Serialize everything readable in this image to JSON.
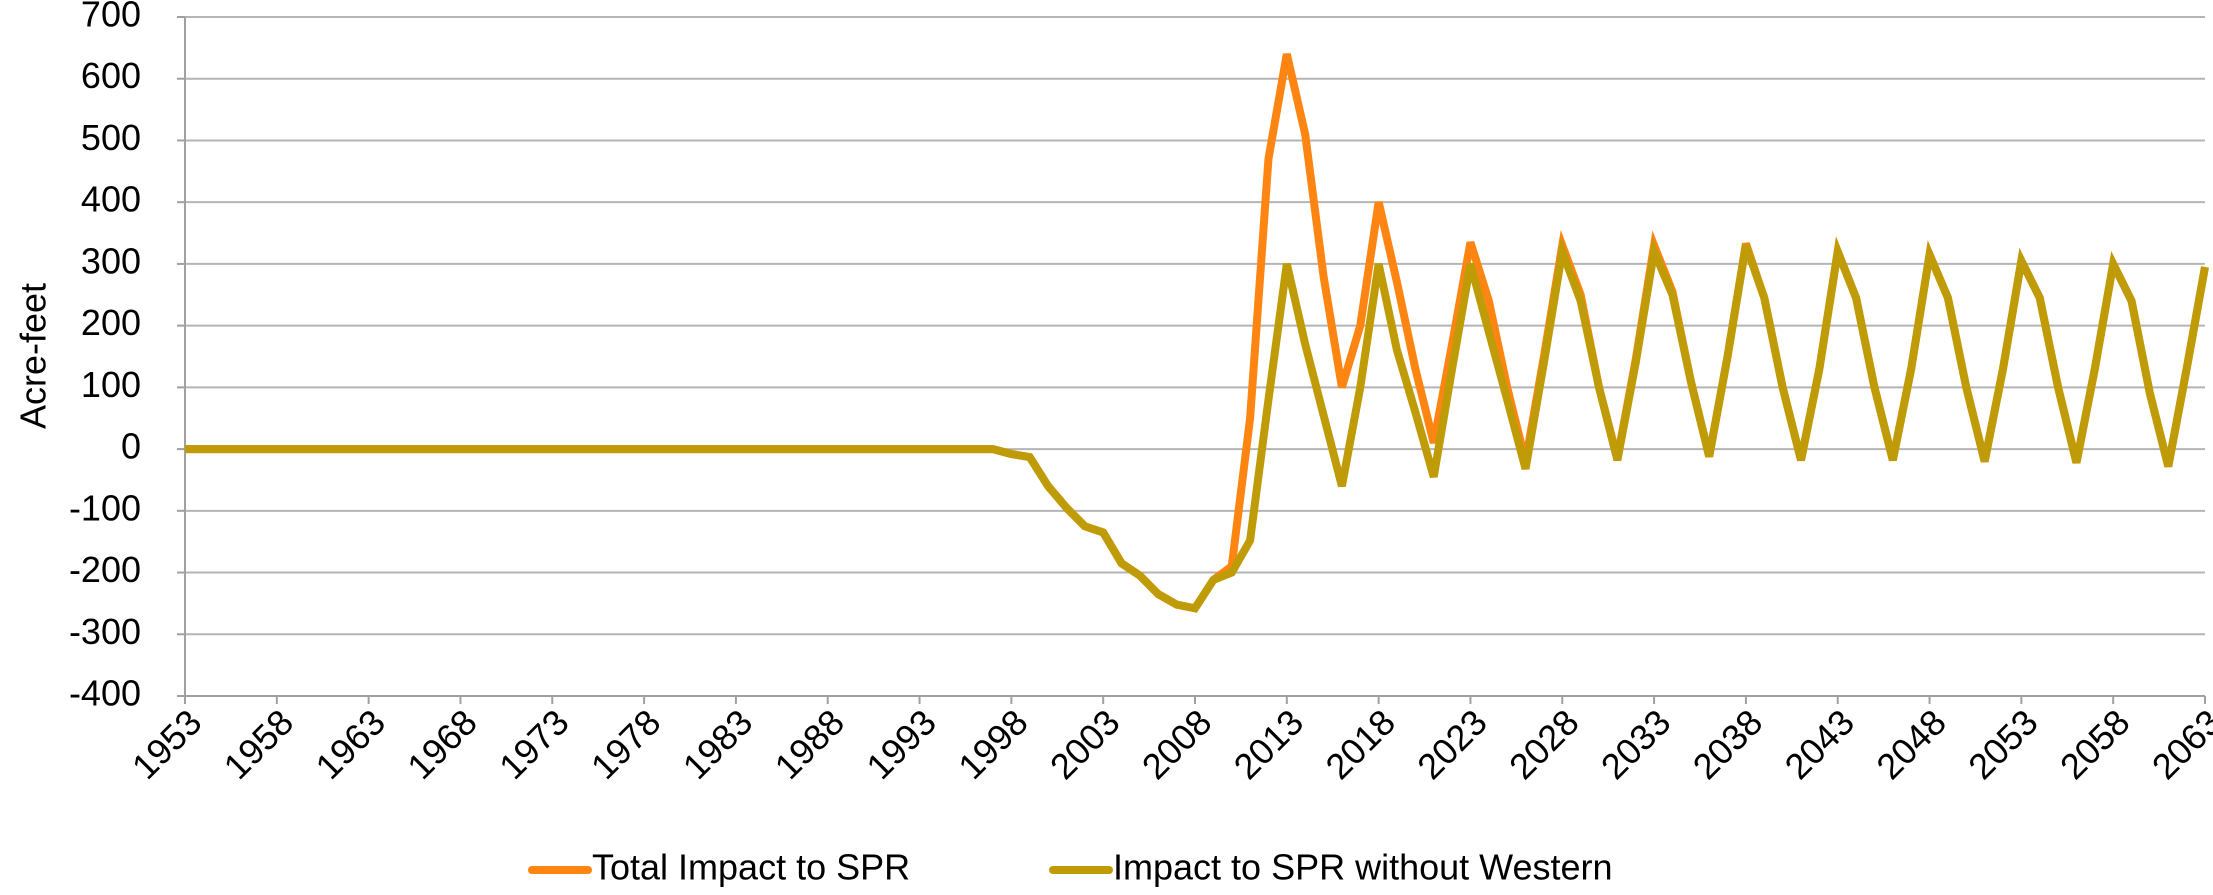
{
  "chart_data": {
    "type": "line",
    "y_label": "Acre-feet",
    "x": [
      1953,
      1954,
      1955,
      1956,
      1957,
      1958,
      1959,
      1960,
      1961,
      1962,
      1963,
      1964,
      1965,
      1966,
      1967,
      1968,
      1969,
      1970,
      1971,
      1972,
      1973,
      1974,
      1975,
      1976,
      1977,
      1978,
      1979,
      1980,
      1981,
      1982,
      1983,
      1984,
      1985,
      1986,
      1987,
      1988,
      1989,
      1990,
      1991,
      1992,
      1993,
      1994,
      1995,
      1996,
      1997,
      1998,
      1999,
      2000,
      2001,
      2002,
      2003,
      2004,
      2005,
      2006,
      2007,
      2008,
      2009,
      2010,
      2011,
      2012,
      2013,
      2014,
      2015,
      2016,
      2017,
      2018,
      2019,
      2020,
      2021,
      2022,
      2023,
      2024,
      2025,
      2026,
      2027,
      2028,
      2029,
      2030,
      2031,
      2032,
      2033,
      2034,
      2035,
      2036,
      2037,
      2038,
      2039,
      2040,
      2041,
      2042,
      2043,
      2044,
      2045,
      2046,
      2047,
      2048,
      2049,
      2050,
      2051,
      2052,
      2053,
      2054,
      2055,
      2056,
      2057,
      2058,
      2059,
      2060,
      2061,
      2062,
      2063
    ],
    "series": [
      {
        "name": "Total Impact to SPR",
        "color": "#ff8512",
        "values": [
          0,
          0,
          0,
          0,
          0,
          0,
          0,
          0,
          0,
          0,
          0,
          0,
          0,
          0,
          0,
          0,
          0,
          0,
          0,
          0,
          0,
          0,
          0,
          0,
          0,
          0,
          0,
          0,
          0,
          0,
          0,
          0,
          0,
          0,
          0,
          0,
          0,
          0,
          0,
          0,
          0,
          0,
          0,
          0,
          0,
          -8,
          -13,
          -60,
          -95,
          -125,
          -135,
          -185,
          -205,
          -235,
          -252,
          -258,
          -212,
          -190,
          50,
          470,
          640,
          510,
          280,
          100,
          200,
          400,
          270,
          130,
          10,
          170,
          335,
          240,
          100,
          -20,
          150,
          330,
          250,
          100,
          -15,
          145,
          330,
          255,
          110,
          -12,
          150,
          333,
          245,
          100,
          -18,
          130,
          320,
          245,
          100,
          -18,
          130,
          315,
          245,
          100,
          -20,
          130,
          305,
          245,
          100,
          -22,
          130,
          300,
          240,
          90,
          -28,
          130,
          295
        ]
      },
      {
        "name": "Impact to SPR without Western",
        "color": "#c09b08",
        "values": [
          0,
          0,
          0,
          0,
          0,
          0,
          0,
          0,
          0,
          0,
          0,
          0,
          0,
          0,
          0,
          0,
          0,
          0,
          0,
          0,
          0,
          0,
          0,
          0,
          0,
          0,
          0,
          0,
          0,
          0,
          0,
          0,
          0,
          0,
          0,
          0,
          0,
          0,
          0,
          0,
          0,
          0,
          0,
          0,
          0,
          -8,
          -13,
          -60,
          -95,
          -125,
          -135,
          -185,
          -205,
          -235,
          -252,
          -258,
          -212,
          -200,
          -148,
          80,
          300,
          170,
          55,
          -60,
          100,
          300,
          160,
          60,
          -45,
          130,
          300,
          190,
          80,
          -32,
          140,
          320,
          240,
          100,
          -18,
          140,
          320,
          250,
          110,
          -12,
          150,
          330,
          245,
          100,
          -18,
          130,
          320,
          245,
          100,
          -18,
          130,
          315,
          245,
          100,
          -20,
          130,
          305,
          245,
          100,
          -22,
          130,
          300,
          240,
          90,
          -28,
          130,
          295
        ]
      }
    ],
    "xlim": [
      1953,
      2063
    ],
    "xticks": [
      1953,
      1958,
      1963,
      1968,
      1973,
      1978,
      1983,
      1988,
      1993,
      1998,
      2003,
      2008,
      2013,
      2018,
      2023,
      2028,
      2033,
      2038,
      2043,
      2048,
      2053,
      2058,
      2063
    ],
    "ylim": [
      -400,
      700
    ],
    "yticks": [
      -400,
      -300,
      -200,
      -100,
      0,
      100,
      200,
      300,
      400,
      500,
      600,
      700
    ],
    "grid": true,
    "legend": "bottom"
  }
}
